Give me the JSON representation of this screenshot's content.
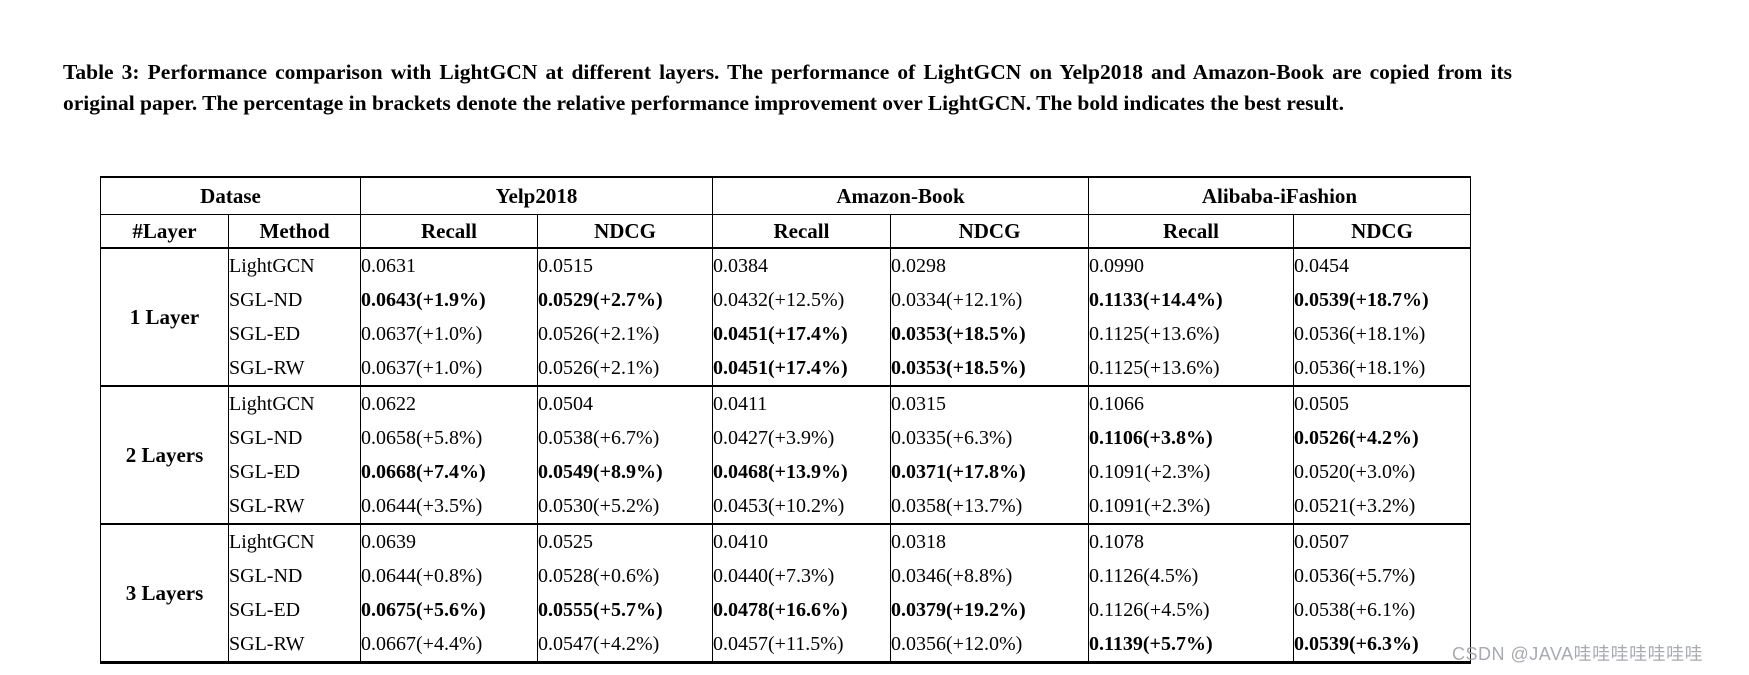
{
  "caption": "Table 3: Performance comparison with LightGCN at different layers. The performance of LightGCN on Yelp2018 and Amazon-Book are copied from its original paper. The percentage in brackets denote the relative performance improvement over LightGCN. The bold indicates the best result.",
  "watermark": "CSDN @JAVA哇哇哇哇哇哇哇",
  "table": {
    "header_top": [
      "Datase",
      "Yelp2018",
      "Amazon-Book",
      "Alibaba-iFashion"
    ],
    "header_sub": [
      "#Layer",
      "Method",
      "Recall",
      "NDCG",
      "Recall",
      "NDCG",
      "Recall",
      "NDCG"
    ],
    "groups": [
      {
        "layer": "1 Layer",
        "rows": [
          {
            "method": "LightGCN",
            "cells": [
              {
                "t": "0.0631",
                "b": false
              },
              {
                "t": "0.0515",
                "b": false
              },
              {
                "t": "0.0384",
                "b": false
              },
              {
                "t": "0.0298",
                "b": false
              },
              {
                "t": "0.0990",
                "b": false
              },
              {
                "t": "0.0454",
                "b": false
              }
            ]
          },
          {
            "method": "SGL-ND",
            "cells": [
              {
                "t": "0.0643(+1.9%)",
                "b": true
              },
              {
                "t": "0.0529(+2.7%)",
                "b": true
              },
              {
                "t": "0.0432(+12.5%)",
                "b": false
              },
              {
                "t": "0.0334(+12.1%)",
                "b": false
              },
              {
                "t": "0.1133(+14.4%)",
                "b": true
              },
              {
                "t": "0.0539(+18.7%)",
                "b": true
              }
            ]
          },
          {
            "method": "SGL-ED",
            "cells": [
              {
                "t": "0.0637(+1.0%)",
                "b": false
              },
              {
                "t": "0.0526(+2.1%)",
                "b": false
              },
              {
                "t": "0.0451(+17.4%)",
                "b": true
              },
              {
                "t": "0.0353(+18.5%)",
                "b": true
              },
              {
                "t": "0.1125(+13.6%)",
                "b": false
              },
              {
                "t": "0.0536(+18.1%)",
                "b": false
              }
            ]
          },
          {
            "method": "SGL-RW",
            "cells": [
              {
                "t": "0.0637(+1.0%)",
                "b": false
              },
              {
                "t": "0.0526(+2.1%)",
                "b": false
              },
              {
                "t": "0.0451(+17.4%)",
                "b": true
              },
              {
                "t": "0.0353(+18.5%)",
                "b": true
              },
              {
                "t": "0.1125(+13.6%)",
                "b": false
              },
              {
                "t": "0.0536(+18.1%)",
                "b": false
              }
            ]
          }
        ]
      },
      {
        "layer": "2 Layers",
        "rows": [
          {
            "method": "LightGCN",
            "cells": [
              {
                "t": "0.0622",
                "b": false
              },
              {
                "t": "0.0504",
                "b": false
              },
              {
                "t": "0.0411",
                "b": false
              },
              {
                "t": "0.0315",
                "b": false
              },
              {
                "t": "0.1066",
                "b": false
              },
              {
                "t": "0.0505",
                "b": false
              }
            ]
          },
          {
            "method": "SGL-ND",
            "cells": [
              {
                "t": "0.0658(+5.8%)",
                "b": false
              },
              {
                "t": "0.0538(+6.7%)",
                "b": false
              },
              {
                "t": "0.0427(+3.9%)",
                "b": false
              },
              {
                "t": "0.0335(+6.3%)",
                "b": false
              },
              {
                "t": "0.1106(+3.8%)",
                "b": true
              },
              {
                "t": "0.0526(+4.2%)",
                "b": true
              }
            ]
          },
          {
            "method": "SGL-ED",
            "cells": [
              {
                "t": "0.0668(+7.4%)",
                "b": true
              },
              {
                "t": "0.0549(+8.9%)",
                "b": true
              },
              {
                "t": "0.0468(+13.9%)",
                "b": true
              },
              {
                "t": "0.0371(+17.8%)",
                "b": true
              },
              {
                "t": "0.1091(+2.3%)",
                "b": false
              },
              {
                "t": "0.0520(+3.0%)",
                "b": false
              }
            ]
          },
          {
            "method": "SGL-RW",
            "cells": [
              {
                "t": "0.0644(+3.5%)",
                "b": false
              },
              {
                "t": "0.0530(+5.2%)",
                "b": false
              },
              {
                "t": "0.0453(+10.2%)",
                "b": false
              },
              {
                "t": "0.0358(+13.7%)",
                "b": false
              },
              {
                "t": "0.1091(+2.3%)",
                "b": false
              },
              {
                "t": "0.0521(+3.2%)",
                "b": false
              }
            ]
          }
        ]
      },
      {
        "layer": "3 Layers",
        "rows": [
          {
            "method": "LightGCN",
            "cells": [
              {
                "t": "0.0639",
                "b": false
              },
              {
                "t": "0.0525",
                "b": false
              },
              {
                "t": "0.0410",
                "b": false
              },
              {
                "t": "0.0318",
                "b": false
              },
              {
                "t": "0.1078",
                "b": false
              },
              {
                "t": "0.0507",
                "b": false
              }
            ]
          },
          {
            "method": "SGL-ND",
            "cells": [
              {
                "t": "0.0644(+0.8%)",
                "b": false
              },
              {
                "t": "0.0528(+0.6%)",
                "b": false
              },
              {
                "t": "0.0440(+7.3%)",
                "b": false
              },
              {
                "t": "0.0346(+8.8%)",
                "b": false
              },
              {
                "t": "0.1126(4.5%)",
                "b": false
              },
              {
                "t": "0.0536(+5.7%)",
                "b": false
              }
            ]
          },
          {
            "method": "SGL-ED",
            "cells": [
              {
                "t": "0.0675(+5.6%)",
                "b": true
              },
              {
                "t": "0.0555(+5.7%)",
                "b": true
              },
              {
                "t": "0.0478(+16.6%)",
                "b": true
              },
              {
                "t": "0.0379(+19.2%)",
                "b": true
              },
              {
                "t": "0.1126(+4.5%)",
                "b": false
              },
              {
                "t": "0.0538(+6.1%)",
                "b": false
              }
            ]
          },
          {
            "method": "SGL-RW",
            "cells": [
              {
                "t": "0.0667(+4.4%)",
                "b": false
              },
              {
                "t": "0.0547(+4.2%)",
                "b": false
              },
              {
                "t": "0.0457(+11.5%)",
                "b": false
              },
              {
                "t": "0.0356(+12.0%)",
                "b": false
              },
              {
                "t": "0.1139(+5.7%)",
                "b": true
              },
              {
                "t": "0.0539(+6.3%)",
                "b": true
              }
            ]
          }
        ]
      }
    ]
  }
}
